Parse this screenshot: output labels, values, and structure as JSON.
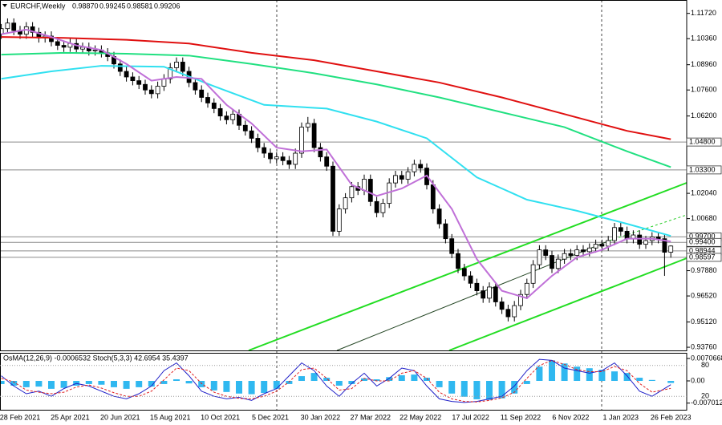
{
  "chart_data": [
    {
      "type": "candlestick",
      "symbol": "EURCHF,Weekly",
      "quote": [
        "0.98870",
        "0.99245",
        "0.98581",
        "0.99206"
      ],
      "categories": [
        null,
        null,
        null,
        "28 Feb 2021",
        null,
        null,
        null,
        null,
        null,
        null,
        null,
        "25 Apr 2021",
        null,
        null,
        null,
        null,
        null,
        null,
        null,
        "20 Jun 2021",
        null,
        null,
        null,
        null,
        null,
        null,
        null,
        "15 Aug 2021",
        null,
        null,
        null,
        null,
        null,
        null,
        null,
        "10 Oct 2021",
        null,
        null,
        null,
        null,
        null,
        null,
        null,
        "5 Dec 2021",
        null,
        null,
        null,
        null,
        null,
        null,
        null,
        "30 Jan 2022",
        null,
        null,
        null,
        null,
        null,
        null,
        null,
        "27 Mar 2022",
        null,
        null,
        null,
        null,
        null,
        null,
        null,
        "22 May 2022",
        null,
        null,
        null,
        null,
        null,
        null,
        null,
        "17 Jul 2022",
        null,
        null,
        null,
        null,
        null,
        null,
        null,
        "11 Sep 2022",
        null,
        null,
        null,
        null,
        null,
        null,
        null,
        "6 Nov 2022",
        null,
        null,
        null,
        null,
        null,
        null,
        null,
        "1 Jan 2023",
        null,
        null,
        null,
        null,
        null,
        null,
        null,
        "26 Feb 2023"
      ],
      "candles": {
        "open": [
          1.106,
          1.109,
          1.112,
          1.108,
          1.106,
          1.11,
          1.107,
          1.104,
          1.105,
          1.102,
          1.1,
          1.099,
          1.101,
          1.098,
          1.099,
          1.097,
          1.0975,
          1.096,
          1.094,
          1.09,
          1.086,
          1.083,
          1.081,
          1.079,
          1.076,
          1.074,
          1.078,
          1.082,
          1.088,
          1.091,
          1.086,
          1.08,
          1.076,
          1.072,
          1.069,
          1.066,
          1.062,
          1.06,
          1.063,
          1.057,
          1.054,
          1.05,
          1.045,
          1.042,
          1.039,
          1.04,
          1.038,
          1.036,
          1.042,
          1.056,
          1.058,
          1.045,
          1.04,
          1.035,
          1.0,
          1.012,
          1.018,
          1.024,
          1.022,
          1.028,
          1.016,
          1.01,
          1.015,
          1.026,
          1.03,
          1.028,
          1.032,
          1.036,
          1.034,
          1.025,
          1.012,
          1.004,
          0.996,
          0.988,
          0.98,
          0.976,
          0.972,
          0.968,
          0.964,
          0.97,
          0.962,
          0.958,
          0.954,
          0.96,
          0.966,
          0.972,
          0.982,
          0.99,
          0.987,
          0.98,
          0.985,
          0.988,
          0.987,
          0.99,
          0.989,
          0.991,
          0.993,
          0.992,
          0.995,
          1.002,
          1.0,
          0.996,
          0.998,
          0.993,
          0.995,
          0.997,
          0.996,
          0.9887
        ],
        "high": [
          1.1115,
          1.1145,
          1.1145,
          1.1105,
          1.1125,
          1.1125,
          1.1095,
          1.1075,
          1.1075,
          1.1045,
          1.1025,
          1.1035,
          1.1035,
          1.1015,
          1.1015,
          1.1,
          1.1,
          1.0985,
          1.0965,
          1.0925,
          1.0885,
          1.0855,
          1.0835,
          1.0815,
          1.0785,
          1.0805,
          1.0845,
          1.0905,
          1.0935,
          1.0935,
          1.0885,
          1.0825,
          1.0785,
          1.0745,
          1.0715,
          1.0685,
          1.0645,
          1.0655,
          1.0655,
          1.0595,
          1.0565,
          1.0525,
          1.0475,
          1.0445,
          1.0425,
          1.0425,
          1.0405,
          1.0445,
          1.0585,
          1.0615,
          1.0605,
          1.0475,
          1.0425,
          1.0375,
          1.0145,
          1.0205,
          1.0265,
          1.0265,
          1.0305,
          1.0305,
          1.0185,
          1.0175,
          1.0285,
          1.0325,
          1.0325,
          1.0345,
          1.0385,
          1.0385,
          1.0365,
          1.0275,
          1.0145,
          1.0065,
          0.9985,
          0.9905,
          0.9825,
          0.9785,
          0.9745,
          0.9705,
          0.9725,
          0.9725,
          0.9645,
          0.9605,
          0.9625,
          0.9685,
          0.9745,
          0.9845,
          0.9925,
          0.9925,
          0.9895,
          0.9875,
          0.9905,
          0.9905,
          0.9925,
          0.9925,
          0.9935,
          0.9955,
          0.9955,
          0.9975,
          1.0045,
          1.0045,
          1.0025,
          1.0005,
          1.0005,
          0.9975,
          0.9995,
          0.9995,
          0.9985,
          0.99245
        ],
        "low": [
          1.1035,
          1.1065,
          1.1055,
          1.1035,
          1.1035,
          1.1045,
          1.1015,
          1.1015,
          1.0995,
          1.0975,
          1.0965,
          1.0965,
          1.0955,
          1.0955,
          1.0945,
          1.0945,
          1.0935,
          1.0915,
          1.0875,
          1.0835,
          1.0805,
          1.0785,
          1.0765,
          1.0735,
          1.0715,
          1.0715,
          1.0755,
          1.0795,
          1.0855,
          1.0835,
          1.0775,
          1.0735,
          1.0695,
          1.0665,
          1.0635,
          1.0595,
          1.0575,
          1.0575,
          1.0545,
          1.0515,
          1.0475,
          1.0425,
          1.0395,
          1.0365,
          1.0365,
          1.0355,
          1.0335,
          1.0335,
          1.0395,
          1.0535,
          1.0425,
          1.0375,
          1.0325,
          0.9975,
          0.9975,
          1.0095,
          1.0155,
          1.0195,
          1.0195,
          1.0135,
          1.0075,
          1.0075,
          1.0125,
          1.0235,
          1.0255,
          1.0255,
          1.0295,
          1.0315,
          1.0225,
          1.0095,
          1.0015,
          0.9935,
          0.9855,
          0.9775,
          0.9735,
          0.9695,
          0.9655,
          0.9615,
          0.9615,
          0.9595,
          0.9555,
          0.9515,
          0.9515,
          0.9575,
          0.9635,
          0.9695,
          0.9795,
          0.9845,
          0.9775,
          0.9775,
          0.9825,
          0.9845,
          0.9845,
          0.9865,
          0.9865,
          0.9885,
          0.9895,
          0.9895,
          0.9925,
          0.9975,
          0.9935,
          0.9935,
          0.9905,
          0.9905,
          0.9925,
          0.9935,
          0.976,
          0.98581
        ],
        "close": [
          1.109,
          1.112,
          1.108,
          1.106,
          1.11,
          1.107,
          1.104,
          1.105,
          1.102,
          1.1,
          1.099,
          1.101,
          1.098,
          1.099,
          1.097,
          1.0975,
          1.096,
          1.094,
          1.09,
          1.086,
          1.083,
          1.081,
          1.079,
          1.076,
          1.074,
          1.078,
          1.082,
          1.088,
          1.091,
          1.086,
          1.08,
          1.076,
          1.072,
          1.069,
          1.066,
          1.062,
          1.06,
          1.063,
          1.057,
          1.054,
          1.05,
          1.045,
          1.042,
          1.039,
          1.04,
          1.038,
          1.036,
          1.042,
          1.056,
          1.058,
          1.045,
          1.04,
          1.035,
          1.0,
          1.012,
          1.018,
          1.024,
          1.022,
          1.028,
          1.016,
          1.01,
          1.015,
          1.026,
          1.03,
          1.028,
          1.032,
          1.036,
          1.034,
          1.025,
          1.012,
          1.004,
          0.996,
          0.988,
          0.98,
          0.976,
          0.972,
          0.968,
          0.964,
          0.97,
          0.962,
          0.958,
          0.954,
          0.96,
          0.966,
          0.972,
          0.982,
          0.99,
          0.987,
          0.98,
          0.985,
          0.988,
          0.987,
          0.99,
          0.989,
          0.991,
          0.993,
          0.992,
          0.995,
          1.002,
          1.0,
          0.996,
          0.998,
          0.993,
          0.995,
          0.997,
          0.996,
          0.9887,
          0.99206
        ]
      },
      "series": [
        {
          "color": "#e01010",
          "x": [
            0,
            10,
            20,
            30,
            40,
            50,
            60,
            70,
            80,
            90,
            100,
            107
          ],
          "values": [
            1.1045,
            1.104,
            1.103,
            1.101,
            1.096,
            1.092,
            1.086,
            1.08,
            1.072,
            1.063,
            1.054,
            1.0495
          ]
        },
        {
          "color": "#20e080",
          "x": [
            0,
            10,
            20,
            30,
            40,
            50,
            60,
            70,
            80,
            90,
            100,
            107
          ],
          "values": [
            1.095,
            1.096,
            1.0955,
            1.0945,
            1.09,
            1.085,
            1.079,
            1.072,
            1.064,
            1.056,
            1.043,
            1.0345
          ]
        },
        {
          "color": "#30e0f0",
          "x": [
            0,
            8,
            16,
            26,
            34,
            42,
            52,
            60,
            68,
            76,
            84,
            92,
            100,
            107
          ],
          "values": [
            1.082,
            1.086,
            1.089,
            1.0885,
            1.078,
            1.068,
            1.066,
            1.059,
            1.05,
            1.029,
            1.017,
            1.011,
            1.004,
            0.9975
          ]
        },
        {
          "color": "#c070d8",
          "x": [
            0,
            4,
            8,
            12,
            16,
            20,
            24,
            28,
            32,
            36,
            40,
            44,
            48,
            52,
            56,
            60,
            64,
            68,
            72,
            76,
            80,
            84,
            88,
            92,
            96,
            100,
            104,
            107
          ],
          "values": [
            1.106,
            1.1085,
            1.1045,
            1.1,
            1.0975,
            1.09,
            1.081,
            1.083,
            1.082,
            1.068,
            1.058,
            1.045,
            1.043,
            1.044,
            1.025,
            1.019,
            1.023,
            1.03,
            1.012,
            0.985,
            0.968,
            0.964,
            0.976,
            0.986,
            0.99,
            0.996,
            0.996,
            0.9945
          ]
        }
      ],
      "ylim": [
        0.9359,
        1.1244
      ],
      "yticks": [
        {
          "value": 1.1172,
          "label": "1.11720"
        },
        {
          "value": 1.1036,
          "label": "1.10360"
        },
        {
          "value": 1.0896,
          "label": "1.08960"
        },
        {
          "value": 1.076,
          "label": "1.07600"
        },
        {
          "value": 1.062,
          "label": "1.06200"
        },
        {
          "value": 1.0204,
          "label": "1.02040"
        },
        {
          "value": 1.0068,
          "label": "1.00680"
        },
        {
          "value": 0.9788,
          "label": "0.97880"
        },
        {
          "value": 0.9652,
          "label": "0.96520"
        },
        {
          "value": 0.9512,
          "label": "0.95120"
        },
        {
          "value": 0.9376,
          "label": "0.93760"
        }
      ],
      "levels": [
        {
          "value": 1.048,
          "label": "1.04800"
        },
        {
          "value": 1.033,
          "label": "1.03300"
        },
        {
          "value": 0.997,
          "label": "0.99700"
        },
        {
          "value": 0.994,
          "label": "0.99400"
        },
        {
          "value": 0.98944,
          "label": "0.98944"
        },
        {
          "value": 0.98597,
          "label": "0.98597"
        }
      ]
    },
    {
      "type": "bar",
      "indicator_label": "OsMA(12,26,9) -0.0006532  Stoch(5,3,3) 42.6954 35.4397",
      "x": [
        0,
        2,
        4,
        6,
        8,
        10,
        12,
        14,
        16,
        18,
        20,
        22,
        24,
        26,
        28,
        30,
        32,
        34,
        36,
        38,
        40,
        42,
        44,
        46,
        48,
        50,
        52,
        54,
        56,
        58,
        60,
        62,
        64,
        66,
        68,
        70,
        72,
        74,
        76,
        78,
        80,
        82,
        84,
        86,
        88,
        90,
        92,
        94,
        96,
        98,
        100,
        102,
        104,
        107
      ],
      "values": [
        -0.001,
        -0.0015,
        -0.002,
        -0.0018,
        -0.0025,
        -0.0022,
        -0.0015,
        -0.001,
        -0.0012,
        -0.002,
        -0.0025,
        -0.002,
        -0.0018,
        -0.001,
        0.0005,
        -0.0008,
        -0.002,
        -0.003,
        -0.0035,
        -0.004,
        -0.0042,
        -0.0038,
        -0.0025,
        -0.001,
        0.0015,
        0.0025,
        0.001,
        -0.0015,
        -0.001,
        0.0008,
        0.0005,
        0.0012,
        0.0018,
        0.002,
        0.001,
        -0.002,
        -0.004,
        -0.005,
        -0.0058,
        -0.006,
        -0.0055,
        -0.004,
        -0.001,
        0.0045,
        0.0065,
        0.0055,
        0.0045,
        0.004,
        0.0035,
        0.003,
        0.0025,
        0.001,
        0.0003,
        -0.0006532
      ],
      "color": "#30b8f0",
      "ylim": [
        -0.0081,
        0.0081
      ],
      "yticks": [
        0.0070668,
        {
          "value": 0,
          "label": "0.00"
        },
        -0.0070124
      ],
      "series": [
        {
          "color": "#2020c8",
          "axis": "y2",
          "values": [
            60,
            40,
            25,
            30,
            20,
            35,
            45,
            40,
            30,
            20,
            15,
            25,
            40,
            70,
            85,
            60,
            30,
            20,
            15,
            18,
            12,
            25,
            35,
            60,
            85,
            70,
            40,
            20,
            45,
            65,
            40,
            55,
            75,
            70,
            40,
            15,
            10,
            8,
            10,
            15,
            20,
            40,
            70,
            92,
            90,
            75,
            70,
            65,
            70,
            85,
            60,
            30,
            20,
            42.6954
          ]
        },
        {
          "color": "#e02020",
          "axis": "y2",
          "dashed": true,
          "values": [
            55,
            48,
            32,
            28,
            25,
            28,
            38,
            42,
            36,
            27,
            20,
            20,
            30,
            52,
            75,
            70,
            45,
            28,
            20,
            16,
            15,
            20,
            30,
            48,
            72,
            75,
            55,
            32,
            35,
            55,
            50,
            50,
            65,
            70,
            55,
            28,
            15,
            10,
            9,
            12,
            17,
            28,
            55,
            80,
            90,
            82,
            72,
            68,
            68,
            78,
            70,
            45,
            28,
            35.4397
          ]
        }
      ],
      "y2lim": [
        0,
        100
      ],
      "y2ticks": [
        80,
        20
      ]
    }
  ]
}
